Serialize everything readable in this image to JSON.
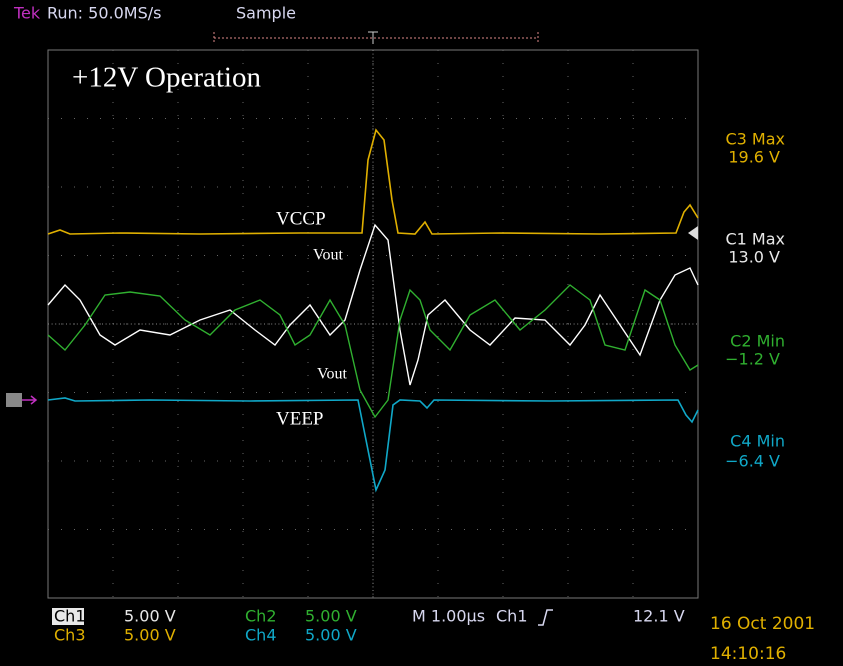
{
  "header": {
    "brand": "Tek",
    "run": "Run: 50.0MS/s",
    "mode": "Sample"
  },
  "title": "+12V Operation",
  "annotations": [
    "VCCP",
    "Vout",
    "Vout",
    "VEEP"
  ],
  "measurements": [
    {
      "label": "C3 Max",
      "value": "19.6 V"
    },
    {
      "label": "C1 Max",
      "value": "13.0 V"
    },
    {
      "label": "C2 Min",
      "value": "−1.2 V"
    },
    {
      "label": "C4 Min",
      "value": "−6.4 V"
    }
  ],
  "status": {
    "ch1": "Ch1",
    "ch1_scale": "5.00 V",
    "ch2": "Ch2",
    "ch2_scale": "5.00 V",
    "ch3": "Ch3",
    "ch3_scale": "5.00 V",
    "ch4": "Ch4",
    "ch4_scale": "5.00 V",
    "timebase": "M 1.00µs",
    "trigger_source": "Ch1",
    "trigger_level": "12.1 V"
  },
  "date": "16 Oct 2001",
  "time": "14:10:16"
}
